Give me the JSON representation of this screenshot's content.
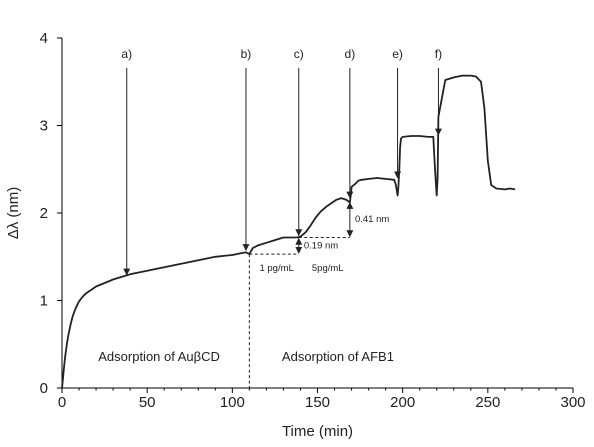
{
  "chart_data": {
    "type": "line",
    "xlabel": "Time (min)",
    "ylabel": "Δλ (nm)",
    "xlim": [
      0,
      300
    ],
    "ylim": [
      0,
      4
    ],
    "xticks": [
      0,
      50,
      100,
      150,
      200,
      250,
      300
    ],
    "yticks": [
      0,
      1,
      2,
      3,
      4
    ],
    "grid": false,
    "series": [
      {
        "x": [
          0,
          0.5,
          1,
          1.5,
          2,
          3,
          4,
          5,
          6,
          7,
          8,
          9,
          10,
          12,
          14,
          17,
          20,
          25,
          30,
          35,
          40,
          45,
          50,
          55,
          60,
          65,
          70,
          75,
          80,
          85,
          90,
          95,
          100,
          105,
          108,
          110,
          112,
          115,
          120,
          125,
          130,
          135,
          138,
          140,
          143,
          146,
          149,
          152,
          155,
          158,
          161,
          164,
          167,
          169,
          169.5,
          170,
          172,
          174,
          176,
          180,
          185,
          190,
          195,
          196,
          197,
          197.5,
          198,
          198.5,
          199,
          200,
          205,
          210,
          215,
          218,
          219,
          220,
          220.5,
          221,
          225,
          230,
          235,
          240,
          243,
          246,
          248,
          250,
          252,
          255,
          260,
          263,
          266
        ],
        "y": [
          0,
          0.1,
          0.2,
          0.3,
          0.38,
          0.52,
          0.63,
          0.72,
          0.8,
          0.86,
          0.91,
          0.95,
          0.99,
          1.04,
          1.08,
          1.12,
          1.16,
          1.2,
          1.24,
          1.27,
          1.3,
          1.32,
          1.34,
          1.36,
          1.38,
          1.4,
          1.42,
          1.44,
          1.46,
          1.48,
          1.5,
          1.51,
          1.52,
          1.54,
          1.55,
          1.53,
          1.6,
          1.63,
          1.66,
          1.69,
          1.72,
          1.72,
          1.72,
          1.73,
          1.78,
          1.86,
          1.95,
          2.02,
          2.07,
          2.11,
          2.15,
          2.17,
          2.15,
          2.12,
          2.2,
          2.3,
          2.33,
          2.37,
          2.38,
          2.39,
          2.4,
          2.39,
          2.38,
          2.32,
          2.2,
          2.3,
          2.5,
          2.75,
          2.85,
          2.87,
          2.88,
          2.88,
          2.87,
          2.87,
          2.5,
          2.2,
          2.4,
          3.1,
          3.52,
          3.55,
          3.57,
          3.57,
          3.56,
          3.5,
          3.2,
          2.6,
          2.32,
          2.28,
          2.27,
          2.28,
          2.27
        ]
      }
    ],
    "annotations": [
      {
        "label": "a)",
        "x": 38,
        "y_tip": 1.27
      },
      {
        "label": "b)",
        "x": 108,
        "y_tip": 1.55
      },
      {
        "label": "c)",
        "x": 139,
        "y_tip": 1.72
      },
      {
        "label": "d)",
        "x": 169,
        "y_tip": 2.15
      },
      {
        "label": "e)",
        "x": 197,
        "y_tip": 2.38
      },
      {
        "label": "f)",
        "x": 221,
        "y_tip": 2.87
      }
    ],
    "steps": [
      {
        "label": "0.19 nm",
        "y_low": 1.53,
        "y_high": 1.72
      },
      {
        "label": "0.41 nm",
        "y_low": 1.72,
        "y_high": 2.13
      }
    ],
    "concentration_labels": [
      "1 pg/mL",
      "5pg/mL"
    ],
    "regions": [
      {
        "label": "Adsorption of AuβCD"
      },
      {
        "label": "Adsorption of AFB1"
      }
    ]
  }
}
